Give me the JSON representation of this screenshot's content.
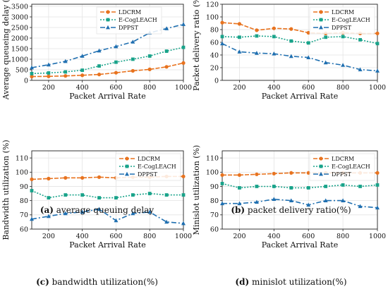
{
  "chart_data": [
    {
      "type": "line",
      "panel_label": "(a)",
      "caption": "average queuing delay",
      "xlabel": "Packet Arrival Rate",
      "ylabel": "Average queueing delay (ms)",
      "xlim": [
        100,
        1000
      ],
      "ylim": [
        0,
        3600
      ],
      "xticks": [
        200,
        400,
        600,
        800,
        1000
      ],
      "yticks": [
        0,
        500,
        1000,
        1500,
        2000,
        2500,
        3000,
        3500
      ],
      "grid": true,
      "legend": "top-left",
      "x": [
        100,
        200,
        300,
        400,
        500,
        600,
        700,
        800,
        900,
        1000
      ],
      "series": [
        {
          "name": "LDCRM",
          "color": "#e8731f",
          "dash": "6,2",
          "marker": "circle",
          "values": [
            180,
            190,
            210,
            240,
            280,
            360,
            450,
            520,
            640,
            820
          ]
        },
        {
          "name": "E-CogLEACH",
          "color": "#19a38a",
          "dash": "2,2",
          "marker": "square",
          "values": [
            320,
            350,
            400,
            480,
            680,
            860,
            1000,
            1150,
            1380,
            1560
          ]
        },
        {
          "name": "DPPST",
          "color": "#1f6fb0",
          "dash": "7,3,2,3",
          "marker": "triangle",
          "values": [
            600,
            740,
            900,
            1150,
            1400,
            1600,
            1820,
            2250,
            2450,
            2650
          ]
        }
      ]
    },
    {
      "type": "line",
      "panel_label": "(b)",
      "caption": "packet delivery ratio(%)",
      "xlabel": "Packet Arrival Rate",
      "ylabel": "Packet delivery ratio (%)",
      "xlim": [
        100,
        1000
      ],
      "ylim": [
        0,
        120
      ],
      "xticks": [
        200,
        400,
        600,
        800,
        1000
      ],
      "yticks": [
        0,
        20,
        40,
        60,
        80,
        100,
        120
      ],
      "grid": true,
      "legend": "top-right",
      "x": [
        100,
        200,
        300,
        400,
        500,
        600,
        700,
        800,
        900,
        1000
      ],
      "series": [
        {
          "name": "LDCRM",
          "color": "#e8731f",
          "dash": "6,2",
          "marker": "circle",
          "values": [
            91,
            89,
            79,
            82,
            81,
            75,
            74,
            75,
            74,
            74
          ]
        },
        {
          "name": "E-CogLEACH",
          "color": "#19a38a",
          "dash": "2,2",
          "marker": "square",
          "values": [
            69,
            68,
            70,
            69,
            62,
            59,
            68,
            69,
            64,
            58
          ]
        },
        {
          "name": "DPPST",
          "color": "#1f6fb0",
          "dash": "7,3,2,3",
          "marker": "triangle",
          "values": [
            58,
            45,
            43,
            42,
            38,
            36,
            28,
            24,
            17,
            15
          ]
        }
      ]
    },
    {
      "type": "line",
      "panel_label": "(c)",
      "caption": "bandwidth utilization(%)",
      "xlabel": "Packet Arrival Rate",
      "ylabel": "Bandwidth utilization (%)",
      "xlim": [
        100,
        1000
      ],
      "ylim": [
        60,
        115
      ],
      "xticks": [
        200,
        400,
        600,
        800,
        1000
      ],
      "yticks": [
        60,
        70,
        80,
        90,
        100,
        110
      ],
      "grid": true,
      "legend": "top-right",
      "x": [
        100,
        200,
        300,
        400,
        500,
        600,
        700,
        800,
        900,
        1000
      ],
      "series": [
        {
          "name": "LDCRM",
          "color": "#e8731f",
          "dash": "6,2",
          "marker": "circle",
          "values": [
            95,
            95.5,
            96,
            96,
            96.5,
            96,
            96.5,
            96.5,
            97,
            97
          ]
        },
        {
          "name": "E-CogLEACH",
          "color": "#19a38a",
          "dash": "2,2",
          "marker": "square",
          "values": [
            87,
            82,
            84,
            84,
            82,
            82,
            84,
            85,
            84,
            84
          ]
        },
        {
          "name": "DPPST",
          "color": "#1f6fb0",
          "dash": "7,3,2,3",
          "marker": "triangle",
          "values": [
            67,
            69,
            71,
            72,
            74,
            66,
            71,
            72,
            65,
            64
          ]
        }
      ]
    },
    {
      "type": "line",
      "panel_label": "(d)",
      "caption": "minislot utilization(%)",
      "xlabel": "Packet Arrival Rate",
      "ylabel": "Minislot utilization (%)",
      "xlim": [
        100,
        1000
      ],
      "ylim": [
        60,
        115
      ],
      "xticks": [
        200,
        400,
        600,
        800,
        1000
      ],
      "yticks": [
        60,
        70,
        80,
        90,
        100,
        110
      ],
      "grid": true,
      "legend": "top-right",
      "x": [
        100,
        200,
        300,
        400,
        500,
        600,
        700,
        800,
        900,
        1000
      ],
      "series": [
        {
          "name": "LDCRM",
          "color": "#e8731f",
          "dash": "6,2",
          "marker": "circle",
          "values": [
            98,
            98,
            98.5,
            99,
            99.5,
            99.5,
            99.5,
            99.5,
            99.5,
            99.5
          ]
        },
        {
          "name": "E-CogLEACH",
          "color": "#19a38a",
          "dash": "2,2",
          "marker": "square",
          "values": [
            92,
            89,
            90,
            90,
            89,
            89,
            90,
            91,
            90,
            91
          ]
        },
        {
          "name": "DPPST",
          "color": "#1f6fb0",
          "dash": "7,3,2,3",
          "marker": "triangle",
          "values": [
            78,
            78,
            79,
            81,
            80,
            77,
            80,
            80,
            76,
            75
          ]
        }
      ]
    }
  ]
}
